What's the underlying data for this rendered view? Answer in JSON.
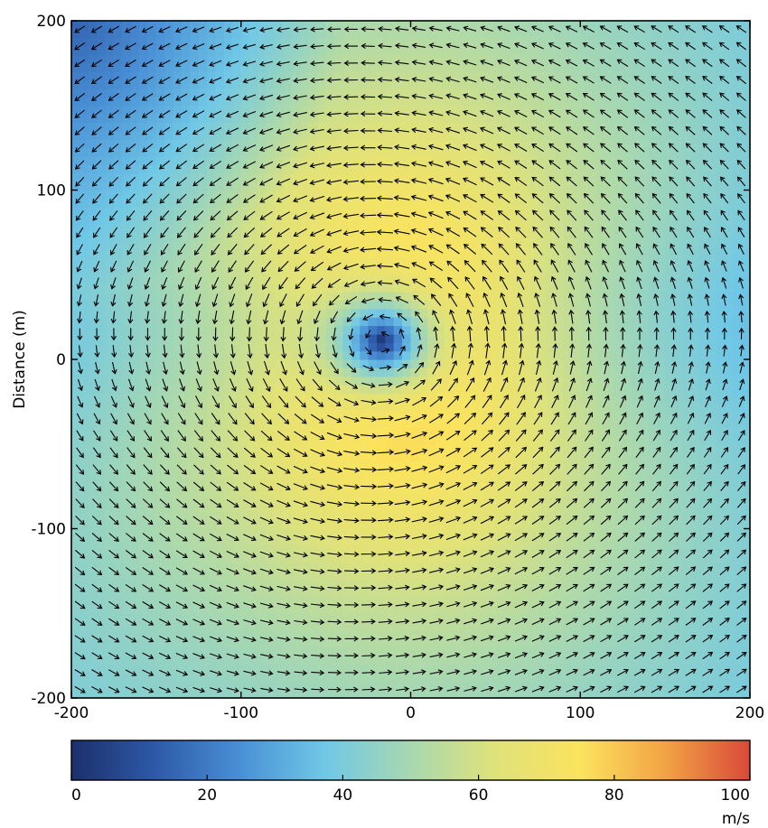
{
  "chart_data": {
    "type": "heatmap",
    "subtype": "vector-field-over-speed-map",
    "title": "",
    "xlabel": "",
    "ylabel": "Distance (m)",
    "x_range": [
      -200,
      200
    ],
    "y_range": [
      -200,
      200
    ],
    "x_ticks": [
      -200,
      -100,
      0,
      100,
      200
    ],
    "y_ticks": [
      -200,
      -100,
      0,
      100,
      200
    ],
    "x_tick_labels": [
      "-200",
      "-100",
      "0",
      "100",
      "200"
    ],
    "y_tick_labels": [
      "-200",
      "-100",
      "0",
      "100",
      "200"
    ],
    "grid": false,
    "vortex_center": [
      -15,
      10
    ],
    "vortex_rotation": "counterclockwise",
    "background_flow_direction": "right-to-left (top), left-to-right (bottom)",
    "max_speed_location": [
      65,
      0
    ],
    "max_speed_value": 85,
    "min_speed_location": [
      -15,
      10
    ],
    "colorbar": {
      "label": "m/s",
      "range": [
        0,
        100
      ],
      "ticks": [
        0,
        20,
        40,
        60,
        80,
        100
      ],
      "tick_labels": [
        "0",
        "20",
        "40",
        "60",
        "80",
        "100"
      ],
      "colors": [
        "#1c2f6b",
        "#2e5aa8",
        "#4a90d6",
        "#70c8e6",
        "#a8d8b0",
        "#dfe27a",
        "#fbe35d",
        "#f2a344",
        "#d9493a"
      ]
    }
  }
}
